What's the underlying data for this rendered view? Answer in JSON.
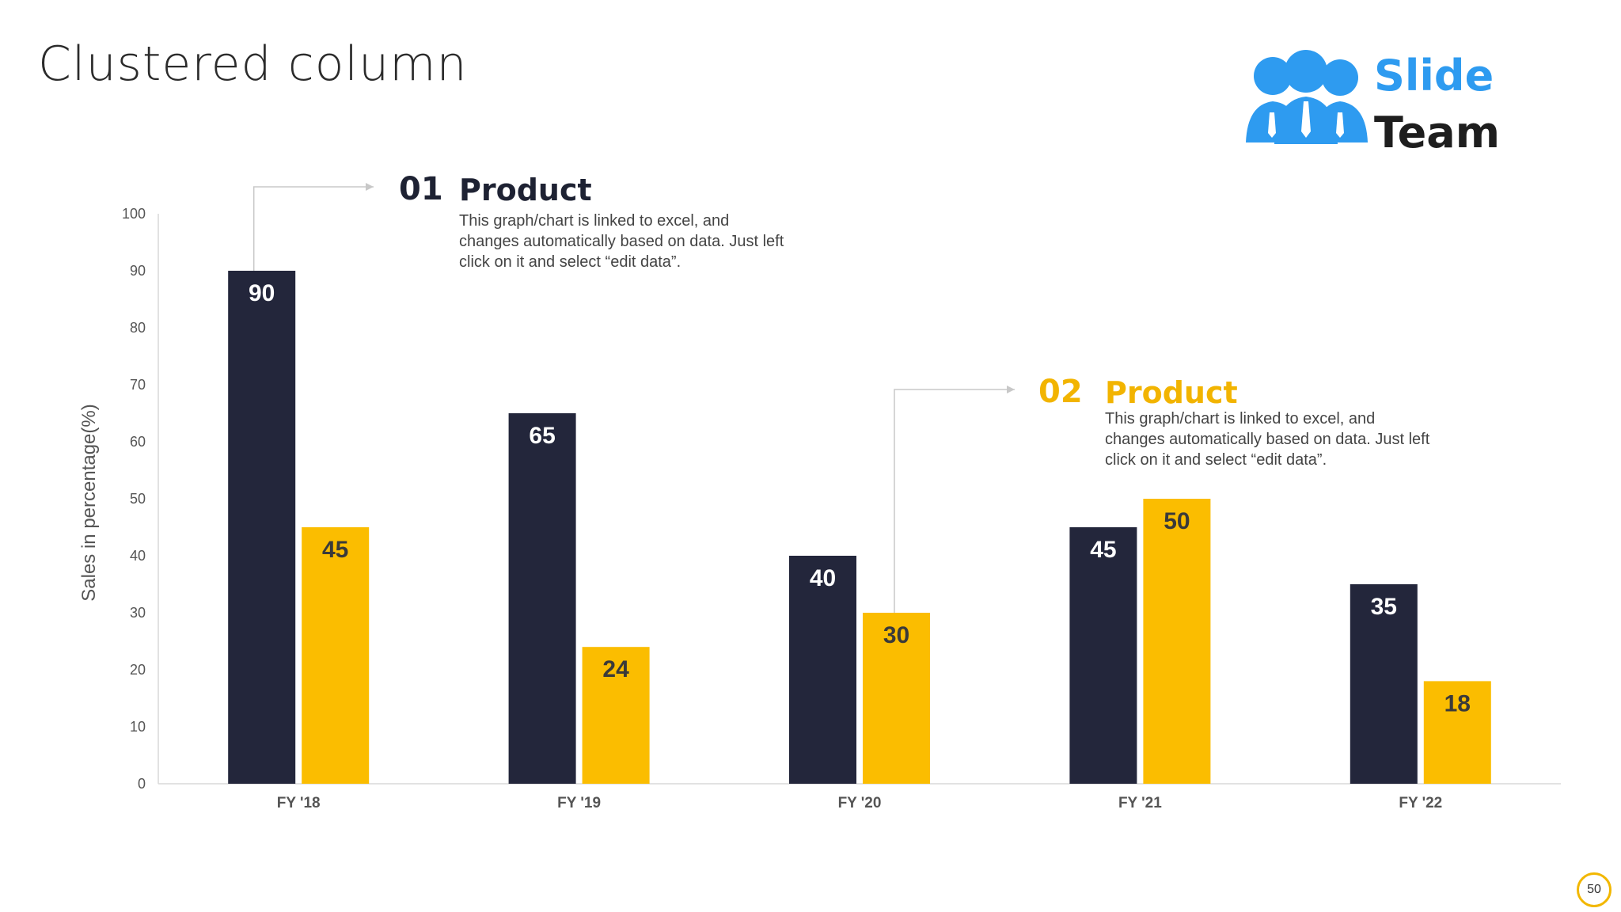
{
  "slide": {
    "title": "Clustered column",
    "page_number": "50"
  },
  "logo": {
    "line1": "Slide",
    "line2": "Team",
    "icon": "three-people-icon"
  },
  "colors": {
    "series1": "#23263b",
    "series2": "#fbbd00",
    "axis_text": "#555555",
    "accent_yellow": "#f2b400",
    "dark_text": "#1e2233",
    "logo_blue": "#2e9bf0"
  },
  "callouts": [
    {
      "number": "01",
      "title": "Product",
      "text": "This graph/chart is linked to excel, and changes automatically based on data. Just left click on it and select “edit data”."
    },
    {
      "number": "02",
      "title": "Product",
      "text": "This graph/chart is linked to excel, and changes automatically based on data. Just left click on it and select “edit data”."
    }
  ],
  "chart_data": {
    "type": "bar",
    "title": "",
    "xlabel": "",
    "ylabel": "Sales in percentage(%)",
    "ylim": [
      0,
      100
    ],
    "yticks": [
      0,
      10,
      20,
      30,
      40,
      50,
      60,
      70,
      80,
      90,
      100
    ],
    "categories": [
      "FY '18",
      "FY '19",
      "FY '20",
      "FY '21",
      "FY '22"
    ],
    "series": [
      {
        "name": "Product 01",
        "values": [
          90,
          65,
          40,
          45,
          35
        ]
      },
      {
        "name": "Product 02",
        "values": [
          45,
          24,
          30,
          50,
          18
        ]
      }
    ],
    "data_labels": true,
    "grid": false,
    "legend": "none"
  }
}
